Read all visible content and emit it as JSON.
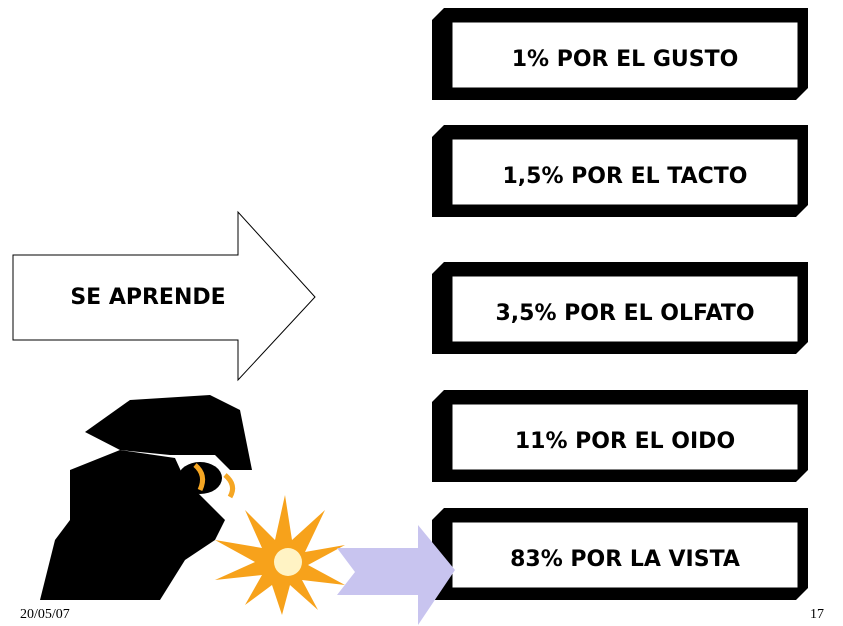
{
  "arrow": {
    "label": "SE APRENDE"
  },
  "boxes": [
    "1% POR EL GUSTO",
    "1,5% POR EL TACTO",
    "3,5% POR EL OLFATO",
    "11% POR EL OIDO",
    "83% POR LA VISTA"
  ],
  "footer": {
    "date": "20/05/07",
    "page": "17"
  }
}
